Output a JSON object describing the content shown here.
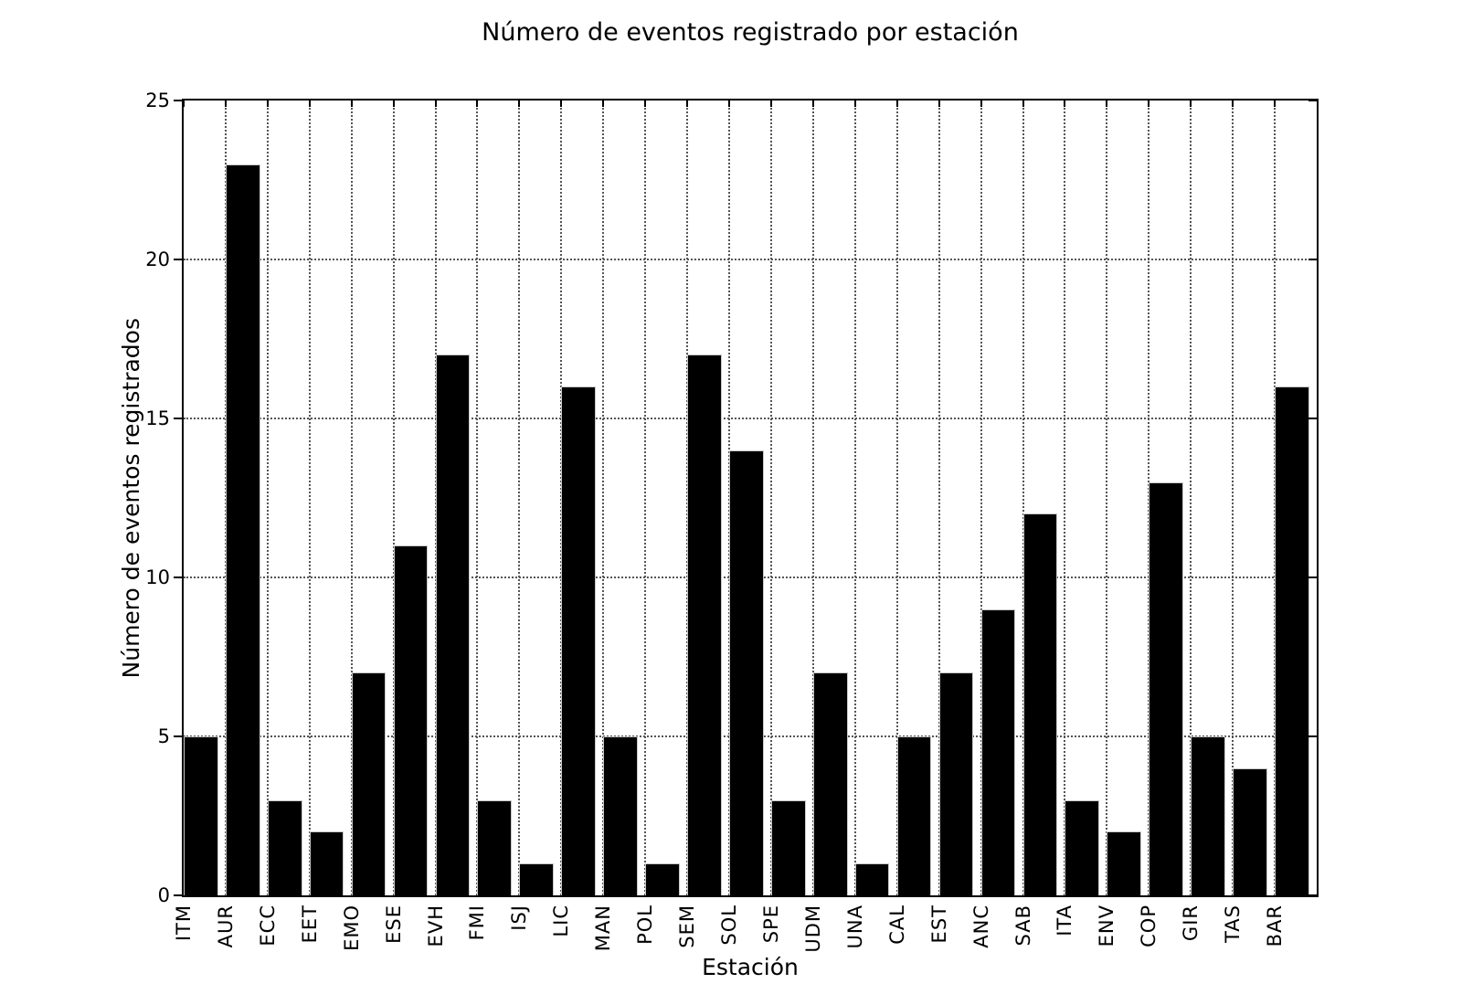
{
  "figure": {
    "background": "#ffffff"
  },
  "chart_data": {
    "type": "bar",
    "title": "Número de eventos registrado por estación",
    "xlabel": "Estación",
    "ylabel": "Número de eventos registrados",
    "categories": [
      "ITM",
      "AUR",
      "ECC",
      "EET",
      "EMO",
      "ESE",
      "EVH",
      "FMI",
      "ISJ",
      "LIC",
      "MAN",
      "POL",
      "SEM",
      "SOL",
      "SPE",
      "UDM",
      "UNA",
      "CAL",
      "EST",
      "ANC",
      "SAB",
      "ITA",
      "ENV",
      "COP",
      "GIR",
      "TAS",
      "BAR"
    ],
    "values": [
      5,
      23,
      3,
      2,
      7,
      11,
      17,
      3,
      1,
      16,
      5,
      1,
      17,
      14,
      3,
      7,
      1,
      5,
      7,
      9,
      12,
      3,
      2,
      13,
      5,
      4,
      16
    ],
    "ylim": [
      0,
      25
    ],
    "yticks": [
      0,
      5,
      10,
      15,
      20,
      25
    ],
    "grid": "dotted, vertical line at every station tick, horizontal line at every ytick",
    "legend": "none",
    "bar_color": "#000000",
    "bar_edge_color": "#c8c8c8",
    "text_color": "#000000"
  }
}
